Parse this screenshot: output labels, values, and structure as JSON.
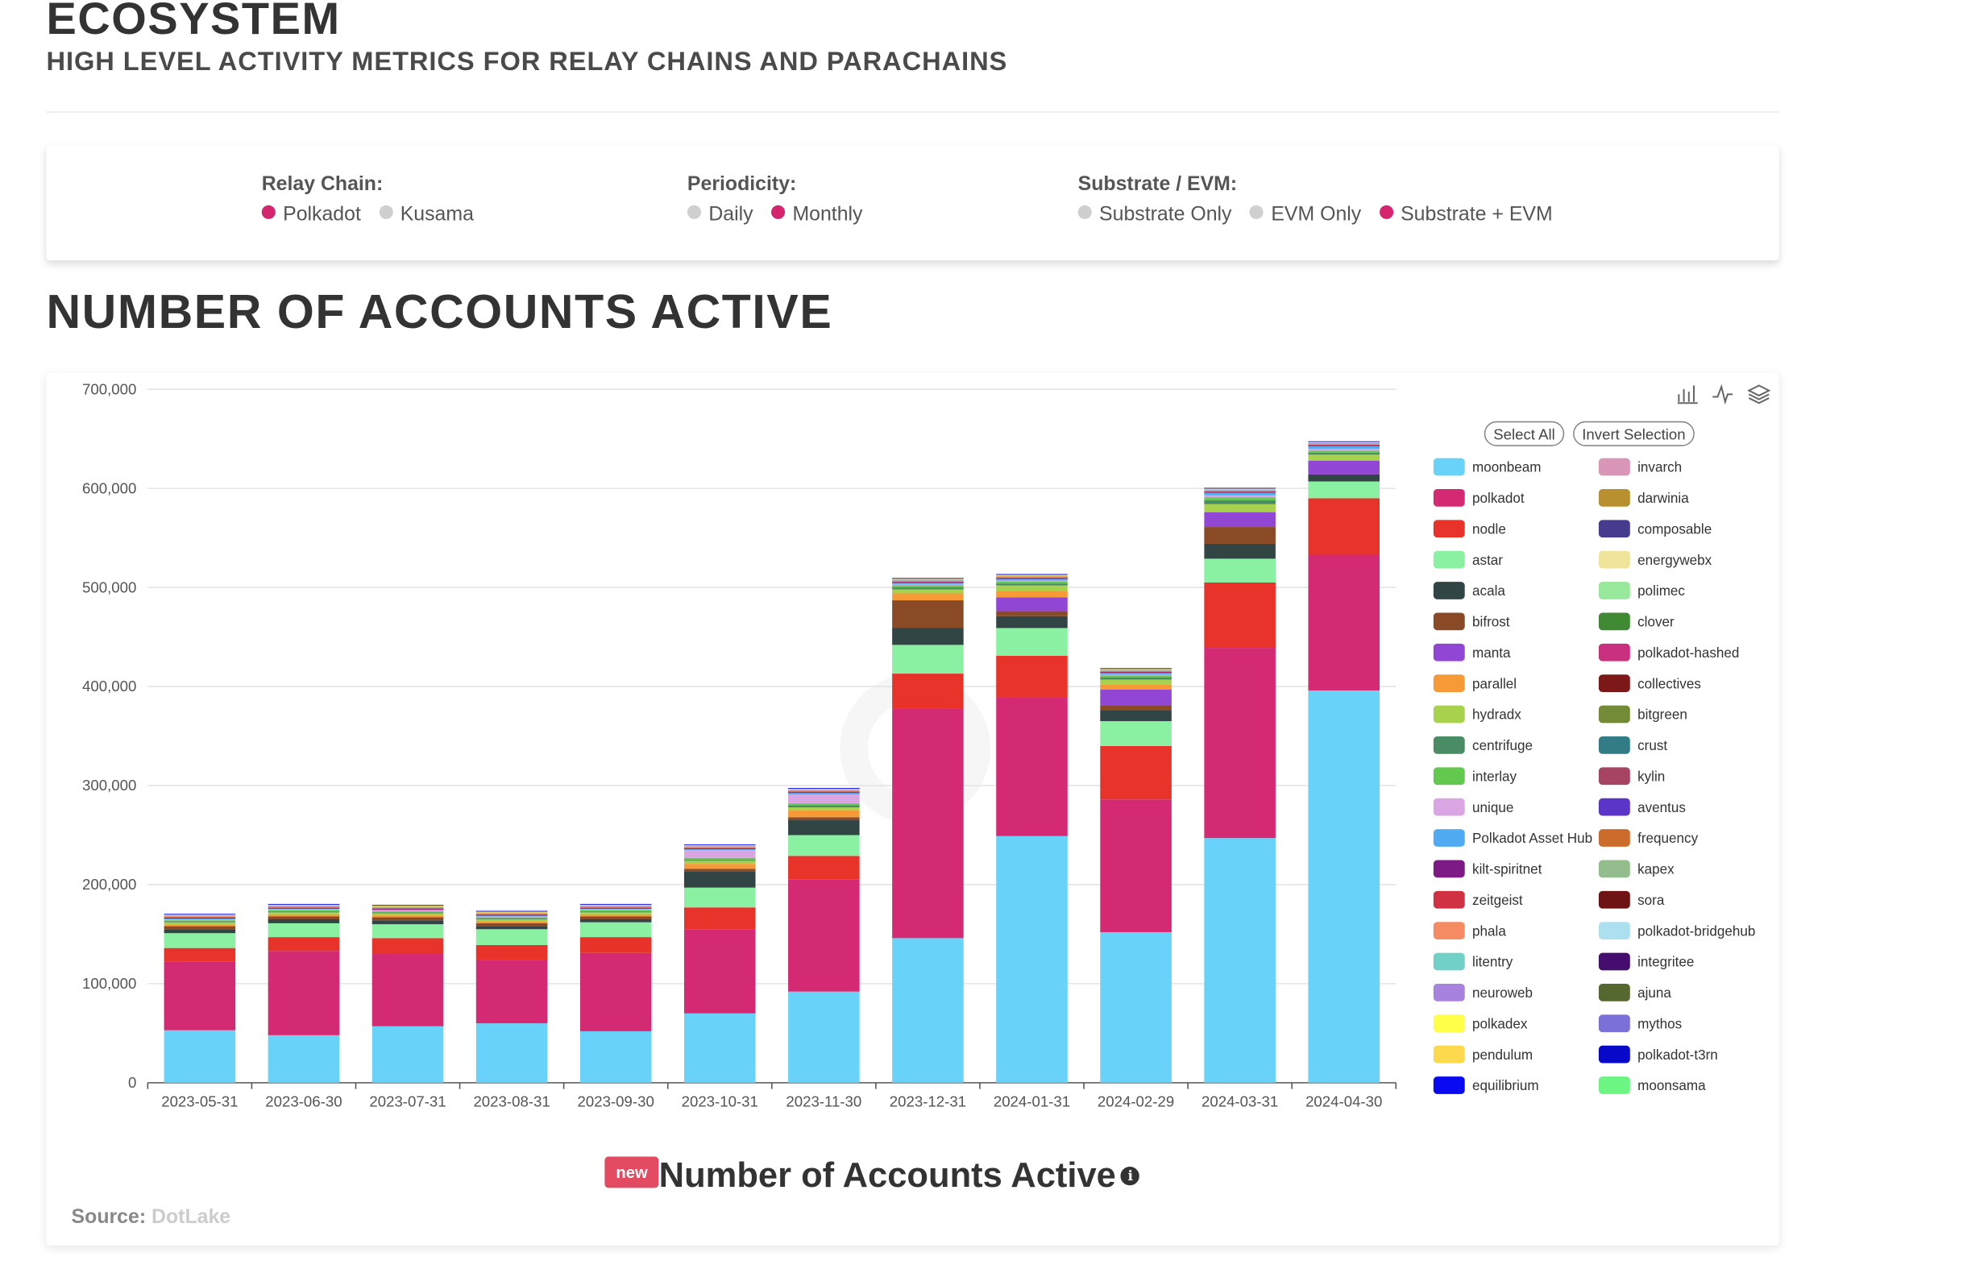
{
  "header": {
    "title": "ECOSYSTEM",
    "subtitle": "HIGH LEVEL ACTIVITY METRICS FOR RELAY CHAINS AND PARACHAINS"
  },
  "filters": {
    "relay": {
      "label": "Relay Chain:",
      "opt1": "Polkadot",
      "opt2": "Kusama"
    },
    "periodicity": {
      "label": "Periodicity:",
      "opt1": "Daily",
      "opt2": "Monthly"
    },
    "evm": {
      "label": "Substrate / EVM:",
      "opt1": "Substrate Only",
      "opt2": "EVM Only",
      "opt3": "Substrate + EVM"
    }
  },
  "section": {
    "title": "NUMBER OF ACCOUNTS ACTIVE"
  },
  "toolbar": {
    "bar_icon": "bar-chart-icon",
    "line_icon": "line-chart-icon",
    "stack_icon": "stack-icon"
  },
  "legend_controls": {
    "select_all": "Select All",
    "invert": "Invert Selection"
  },
  "footer": {
    "badge": "new",
    "title": "Number of Accounts Active",
    "info_glyph": "i",
    "source_label": "Source:",
    "source_name": "DotLake"
  },
  "chart_data": {
    "type": "bar",
    "stacked": true,
    "title": "Number of Accounts Active",
    "xlabel": "",
    "ylabel": "",
    "ylim": [
      0,
      700000
    ],
    "yticks": [
      0,
      100000,
      200000,
      300000,
      400000,
      500000,
      600000,
      700000
    ],
    "ytick_labels": [
      "0",
      "100,000",
      "200,000",
      "300,000",
      "400,000",
      "500,000",
      "600,000",
      "700,000"
    ],
    "categories": [
      "2023-05-31",
      "2023-06-30",
      "2023-07-31",
      "2023-08-31",
      "2023-09-30",
      "2023-10-31",
      "2023-11-30",
      "2023-12-31",
      "2024-01-31",
      "2024-02-29",
      "2024-03-31",
      "2024-04-30"
    ],
    "series": [
      {
        "name": "moonbeam",
        "color": "#69d2f8",
        "values": [
          53000,
          48000,
          57000,
          60000,
          52000,
          70000,
          92000,
          146000,
          249000,
          152000,
          247000,
          396000
        ]
      },
      {
        "name": "polkadot",
        "color": "#d42a74",
        "values": [
          69000,
          85000,
          73000,
          64000,
          79000,
          85000,
          113000,
          232000,
          140000,
          134000,
          192000,
          137000
        ]
      },
      {
        "name": "nodle",
        "color": "#e8332a",
        "values": [
          14000,
          14000,
          16000,
          15000,
          16000,
          22000,
          24000,
          35000,
          42000,
          54000,
          66000,
          57000
        ]
      },
      {
        "name": "astar",
        "color": "#8af0a2",
        "values": [
          15000,
          14000,
          14000,
          16000,
          15000,
          20000,
          21000,
          29000,
          28000,
          25000,
          24000,
          17000
        ]
      },
      {
        "name": "acala",
        "color": "#324545",
        "values": [
          4000,
          4000,
          4000,
          3000,
          3000,
          16000,
          15000,
          17000,
          12000,
          11000,
          15000,
          7000
        ]
      },
      {
        "name": "bifrost",
        "color": "#8a4a25",
        "values": [
          3000,
          3000,
          3000,
          3000,
          3000,
          3000,
          3000,
          28000,
          5000,
          5000,
          17000,
          0
        ]
      },
      {
        "name": "manta",
        "color": "#9146d4",
        "values": [
          0,
          0,
          0,
          0,
          0,
          0,
          0,
          0,
          14000,
          16000,
          15000,
          14000
        ]
      },
      {
        "name": "parallel",
        "color": "#f59a36",
        "values": [
          2000,
          2000,
          2000,
          2000,
          2000,
          5000,
          7000,
          7000,
          6000,
          5000,
          0,
          0
        ]
      },
      {
        "name": "hydradx",
        "color": "#a8d24d",
        "values": [
          2000,
          2000,
          2000,
          2000,
          2000,
          3000,
          3000,
          4000,
          6000,
          5000,
          8000,
          6000
        ]
      },
      {
        "name": "centrifuge",
        "color": "#4a8c63",
        "values": [
          1000,
          1000,
          1000,
          1000,
          1000,
          1000,
          2000,
          2000,
          2000,
          2000,
          4000,
          2000
        ]
      },
      {
        "name": "interlay",
        "color": "#63c94e",
        "values": [
          1000,
          1000,
          1000,
          1000,
          1000,
          2000,
          2000,
          2000,
          2000,
          2000,
          3000,
          2000
        ]
      },
      {
        "name": "unique",
        "color": "#d9a6e3",
        "values": [
          1000,
          1000,
          1000,
          1000,
          1000,
          8000,
          9000,
          1000,
          1000,
          1000,
          2000,
          2000
        ]
      },
      {
        "name": "Polkadot Asset Hub",
        "color": "#50abf2",
        "values": [
          1000,
          1000,
          1000,
          1000,
          1000,
          1000,
          2000,
          2000,
          2000,
          2000,
          3000,
          3000
        ]
      },
      {
        "name": "kilt-spiritnet",
        "color": "#7d1a85",
        "values": [
          500,
          500,
          500,
          500,
          500,
          500,
          500,
          500,
          500,
          500,
          500,
          500
        ]
      },
      {
        "name": "zeitgeist",
        "color": "#d03244",
        "values": [
          500,
          500,
          500,
          500,
          500,
          500,
          500,
          500,
          500,
          500,
          500,
          500
        ]
      },
      {
        "name": "phala",
        "color": "#f48b63",
        "values": [
          1000,
          1000,
          1000,
          1000,
          1000,
          1000,
          1000,
          1000,
          1000,
          1000,
          1000,
          1000
        ]
      },
      {
        "name": "litentry",
        "color": "#71d1c9",
        "values": [
          500,
          500,
          500,
          500,
          500,
          500,
          500,
          500,
          500,
          500,
          500,
          500
        ]
      },
      {
        "name": "neuroweb",
        "color": "#a882df",
        "values": [
          500,
          500,
          500,
          500,
          500,
          500,
          500,
          500,
          500,
          500,
          500,
          500
        ]
      },
      {
        "name": "polkadex",
        "color": "#ffff4a",
        "values": [
          500,
          500,
          500,
          500,
          500,
          500,
          500,
          500,
          500,
          500,
          500,
          500
        ]
      },
      {
        "name": "pendulum",
        "color": "#fcd94d",
        "values": [
          500,
          500,
          500,
          500,
          500,
          500,
          500,
          500,
          500,
          500,
          500,
          500
        ]
      },
      {
        "name": "equilibrium",
        "color": "#0a0af0",
        "values": [
          500,
          500,
          500,
          500,
          500,
          500,
          500,
          500,
          500,
          500,
          500,
          500
        ]
      },
      {
        "name": "invarch",
        "color": "#d996b7",
        "values": [
          0,
          0,
          0,
          0,
          0,
          0,
          0,
          0,
          0,
          0,
          0,
          0
        ]
      },
      {
        "name": "darwinia",
        "color": "#b8902f",
        "values": [
          0,
          0,
          0,
          0,
          0,
          0,
          0,
          0,
          0,
          0,
          0,
          0
        ]
      },
      {
        "name": "composable",
        "color": "#463c8e",
        "values": [
          0,
          0,
          0,
          0,
          0,
          0,
          0,
          0,
          0,
          0,
          0,
          0
        ]
      },
      {
        "name": "energywebx",
        "color": "#f0e39a",
        "values": [
          0,
          0,
          0,
          0,
          0,
          0,
          0,
          0,
          0,
          0,
          0,
          0
        ]
      },
      {
        "name": "polimec",
        "color": "#98e89b",
        "values": [
          0,
          0,
          0,
          0,
          0,
          0,
          0,
          0,
          0,
          0,
          0,
          0
        ]
      },
      {
        "name": "clover",
        "color": "#3f8a32",
        "values": [
          0,
          0,
          0,
          0,
          0,
          0,
          0,
          0,
          0,
          0,
          0,
          0
        ]
      },
      {
        "name": "polkadot-hashed",
        "color": "#c9307f",
        "values": [
          0,
          0,
          0,
          0,
          0,
          0,
          0,
          0,
          0,
          0,
          0,
          0
        ]
      },
      {
        "name": "collectives",
        "color": "#7d1818",
        "values": [
          0,
          0,
          0,
          0,
          0,
          0,
          0,
          0,
          0,
          0,
          0,
          0
        ]
      },
      {
        "name": "bitgreen",
        "color": "#738a36",
        "values": [
          0,
          0,
          0,
          0,
          0,
          0,
          0,
          0,
          0,
          0,
          0,
          0
        ]
      },
      {
        "name": "crust",
        "color": "#327c85",
        "values": [
          0,
          0,
          0,
          0,
          0,
          0,
          0,
          0,
          0,
          0,
          0,
          0
        ]
      },
      {
        "name": "kylin",
        "color": "#a84463",
        "values": [
          0,
          0,
          0,
          0,
          0,
          0,
          0,
          0,
          0,
          0,
          0,
          0
        ]
      },
      {
        "name": "aventus",
        "color": "#5a35c8",
        "values": [
          0,
          0,
          0,
          0,
          0,
          0,
          0,
          0,
          0,
          0,
          0,
          0
        ]
      },
      {
        "name": "frequency",
        "color": "#cc6c2c",
        "values": [
          0,
          0,
          0,
          0,
          0,
          0,
          0,
          0,
          0,
          0,
          0,
          0
        ]
      },
      {
        "name": "kapex",
        "color": "#93bd8c",
        "values": [
          0,
          0,
          0,
          0,
          0,
          0,
          0,
          0,
          0,
          0,
          0,
          0
        ]
      },
      {
        "name": "sora",
        "color": "#6e1414",
        "values": [
          0,
          0,
          0,
          0,
          0,
          0,
          0,
          0,
          0,
          0,
          0,
          0
        ]
      },
      {
        "name": "polkadot-bridgehub",
        "color": "#ade0ef",
        "values": [
          0,
          0,
          0,
          0,
          0,
          0,
          0,
          0,
          0,
          0,
          0,
          0
        ]
      },
      {
        "name": "integritee",
        "color": "#450d6e",
        "values": [
          0,
          0,
          0,
          0,
          0,
          0,
          0,
          0,
          0,
          0,
          0,
          0
        ]
      },
      {
        "name": "ajuna",
        "color": "#55682f",
        "values": [
          0,
          0,
          0,
          0,
          0,
          0,
          0,
          0,
          0,
          0,
          0,
          0
        ]
      },
      {
        "name": "mythos",
        "color": "#7b6fd8",
        "values": [
          0,
          0,
          0,
          0,
          0,
          0,
          0,
          0,
          0,
          0,
          0,
          0
        ]
      },
      {
        "name": "polkadot-t3rn",
        "color": "#0808c8",
        "values": [
          0,
          0,
          0,
          0,
          0,
          0,
          0,
          0,
          0,
          0,
          0,
          0
        ]
      },
      {
        "name": "moonsama",
        "color": "#6cf583",
        "values": [
          0,
          0,
          0,
          0,
          0,
          0,
          0,
          0,
          0,
          0,
          0,
          0
        ]
      }
    ]
  }
}
